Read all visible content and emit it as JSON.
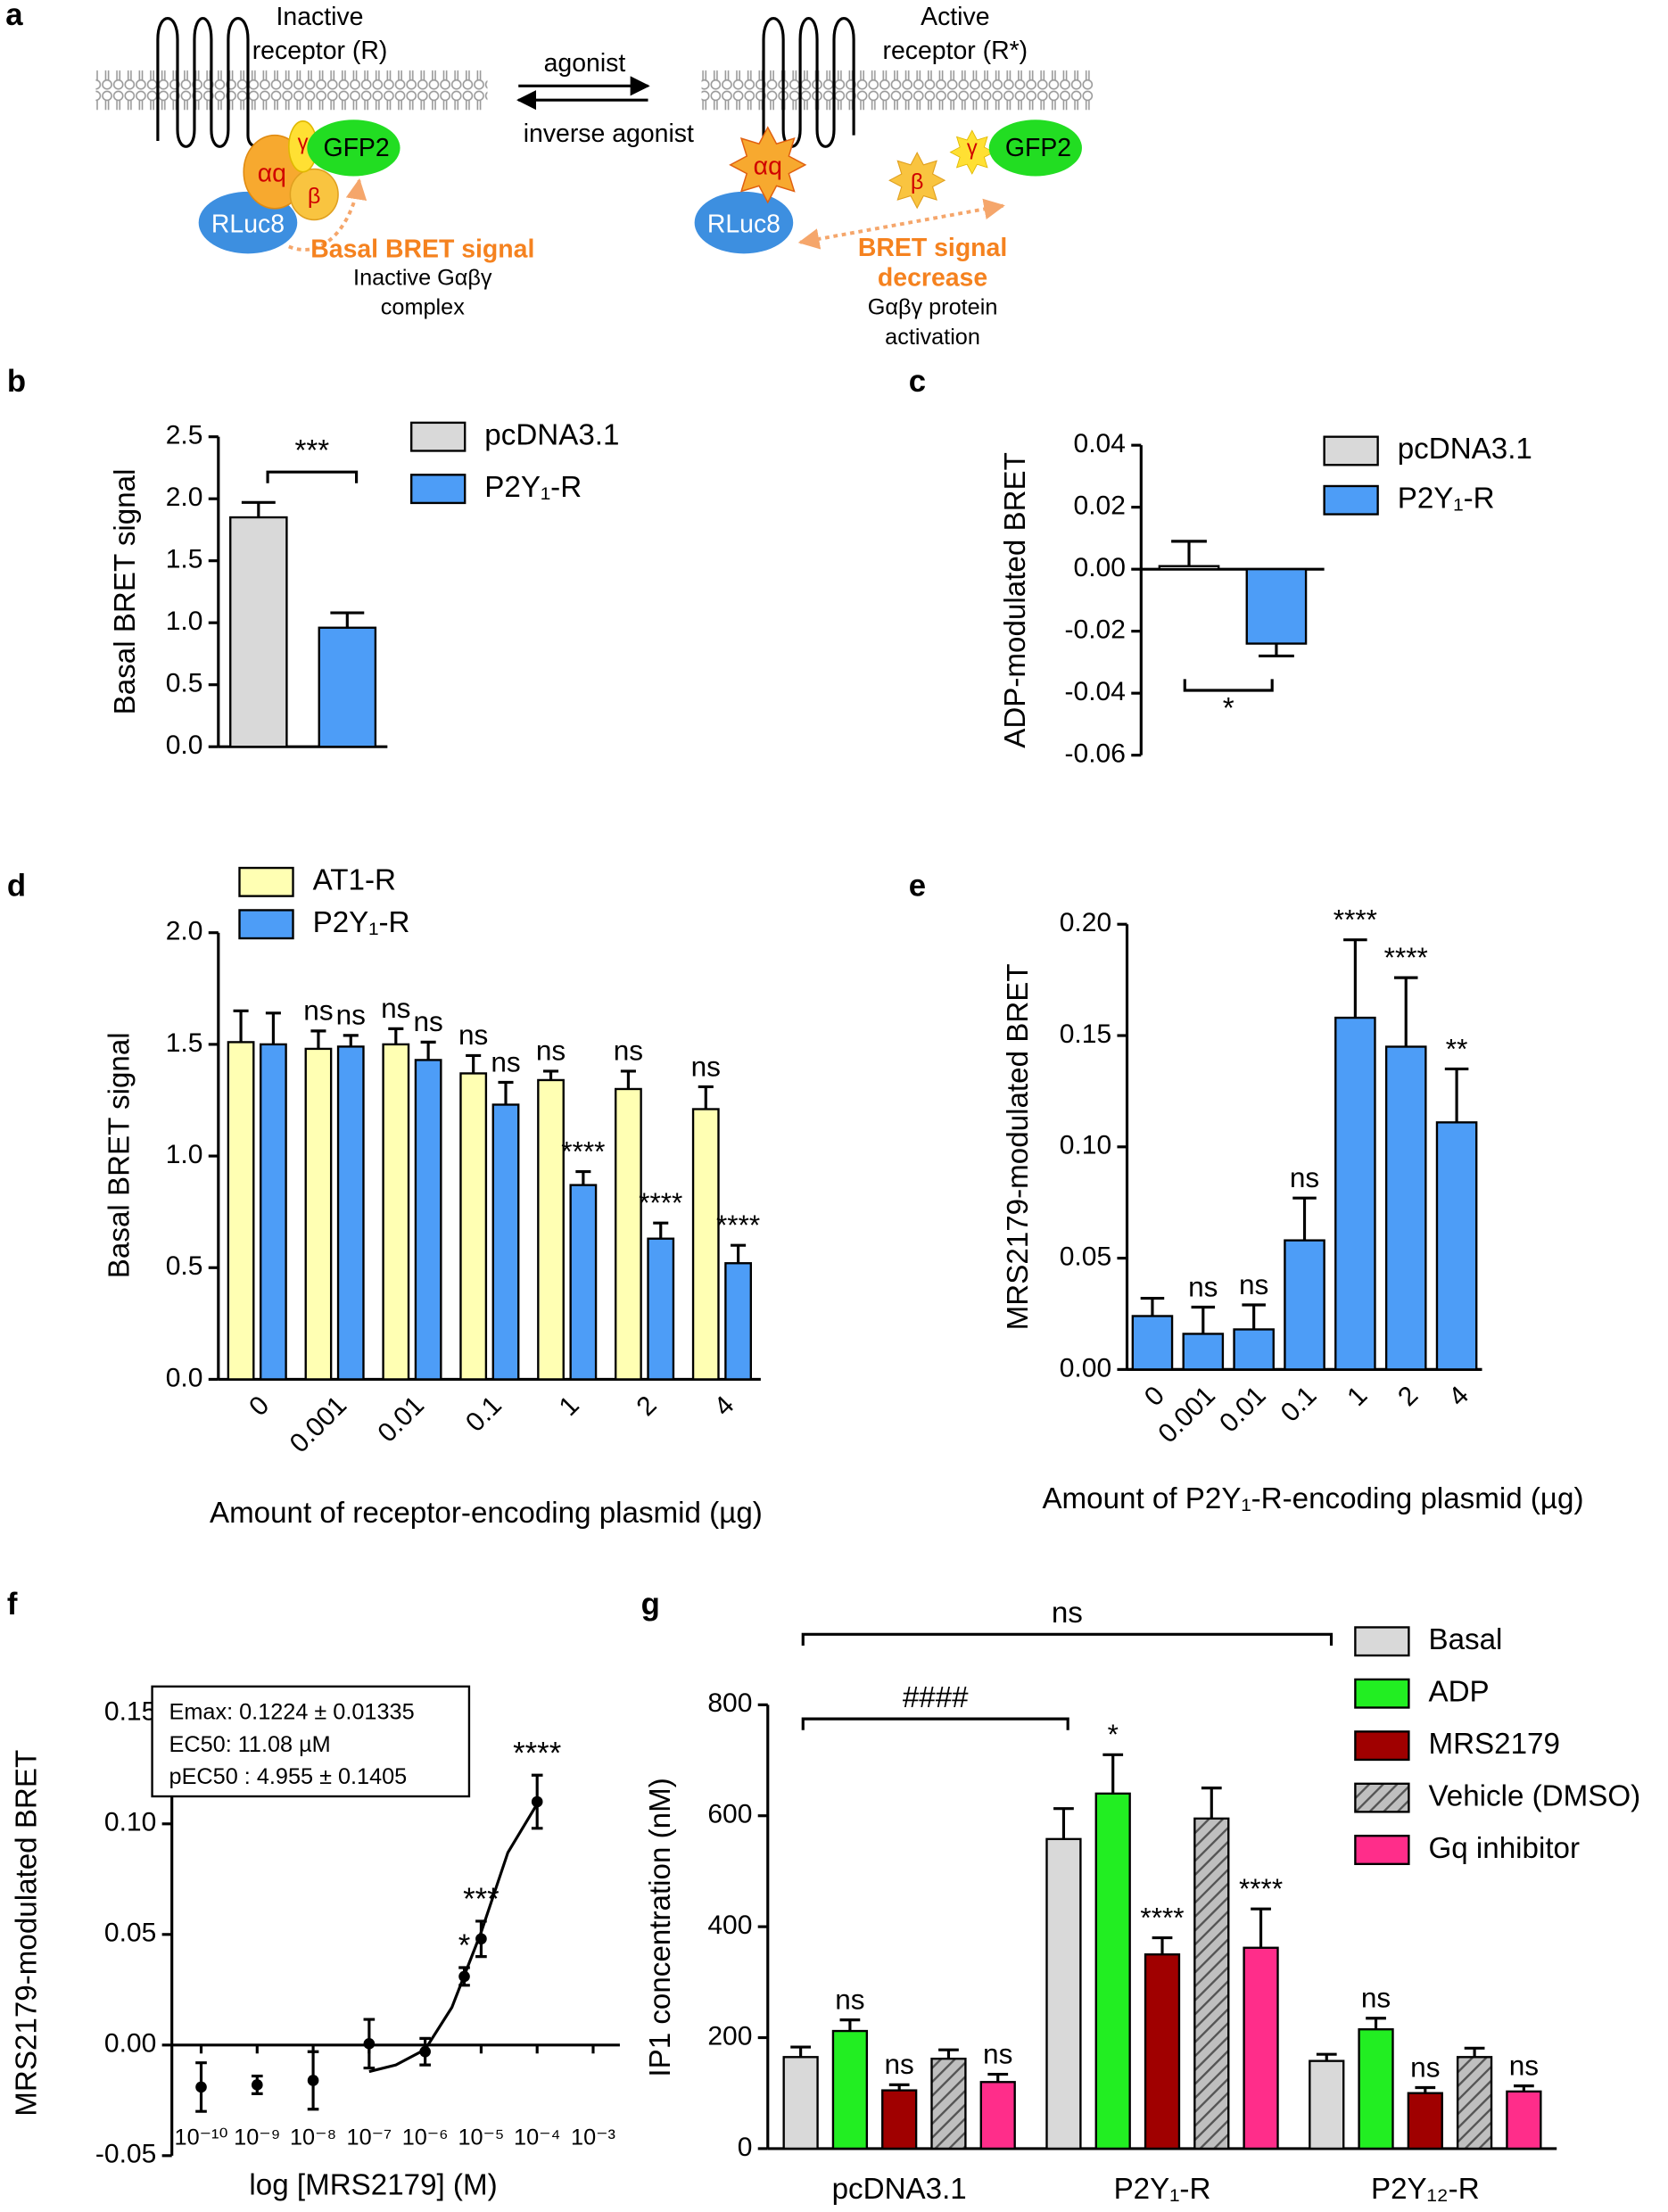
{
  "diagram": {
    "label": "a",
    "left": {
      "receptor": [
        "Inactive",
        "receptor (R)"
      ],
      "alpha": "αq",
      "gamma": "γ",
      "beta": "β",
      "gfp": "GFP2",
      "rluc": "RLuc8",
      "signal": [
        "Basal BRET signal"
      ],
      "state": [
        "Inactive Gαβγ",
        "complex"
      ]
    },
    "right": {
      "receptor": [
        "Active",
        "receptor (R*)"
      ],
      "alpha": "αq",
      "gamma": "γ",
      "beta": "β",
      "gfp": "GFP2",
      "rluc": "RLuc8",
      "signal": [
        "BRET signal",
        "decrease"
      ],
      "state": [
        "Gαβγ protein",
        "activation"
      ]
    },
    "arrows": {
      "forward": "agonist",
      "backward": "inverse agonist"
    }
  },
  "chart_data": [
    {
      "type": "bar",
      "label": "b",
      "y_label": "Basal BRET signal",
      "categories": [
        null
      ],
      "series": [
        {
          "name": "pcDNA3.1",
          "color": "#d9d9d9",
          "values": [
            1.85
          ],
          "errors": [
            0.12
          ]
        },
        {
          "name": "P2Y₁-R",
          "color": "#4d9df7",
          "values": [
            0.96
          ],
          "errors": [
            0.12
          ]
        }
      ],
      "brackets": [
        "***"
      ],
      "ylim": [
        0,
        2.5
      ],
      "yticks": [
        {
          "value": 0,
          "label": "0.0"
        },
        0.5,
        {
          "value": 1,
          "label": "1.0"
        },
        1.5,
        {
          "value": 2,
          "label": "2.0"
        },
        2.5
      ]
    },
    {
      "type": "bar",
      "label": "c",
      "y_label": "ADP-modulated BRET",
      "categories": [
        null
      ],
      "series": [
        {
          "name": "pcDNA3.1",
          "color": "#d9d9d9",
          "values": [
            0.001
          ],
          "errors": [
            0.008
          ]
        },
        {
          "name": "P2Y₁-R",
          "color": "#4d9df7",
          "values": [
            -0.024
          ],
          "errors": [
            0.004
          ]
        }
      ],
      "brackets": [
        "*"
      ],
      "ylim": [
        -0.06,
        0.04
      ],
      "yticks": [
        0.04,
        0.02,
        {
          "value": 0,
          "label": "0.00"
        },
        -0.02,
        -0.04,
        -0.06
      ]
    },
    {
      "type": "bar",
      "label": "d",
      "y_label": "Basal BRET signal",
      "x_label": "Amount of receptor-encoding plasmid (µg)",
      "categories": [
        "0",
        "0.001",
        "0.01",
        "0.1",
        "1",
        "2",
        "4"
      ],
      "series": [
        {
          "name": "AT1-R",
          "color": "#ffffb3",
          "values": [
            1.51,
            1.48,
            1.5,
            1.37,
            1.34,
            1.3,
            1.21
          ],
          "errors": [
            0.14,
            0.08,
            0.07,
            0.08,
            0.04,
            0.08,
            0.1
          ],
          "annotations": [
            null,
            "ns",
            "ns",
            "ns",
            "ns",
            "ns",
            "ns"
          ]
        },
        {
          "name": "P2Y₁-R",
          "color": "#4d9df7",
          "values": [
            1.5,
            1.49,
            1.43,
            1.23,
            0.87,
            0.63,
            0.52
          ],
          "errors": [
            0.14,
            0.05,
            0.08,
            0.1,
            0.06,
            0.07,
            0.08
          ],
          "annotations": [
            null,
            "ns",
            "ns",
            "ns",
            "****",
            "****",
            "****"
          ]
        }
      ],
      "ylim": [
        0,
        2
      ],
      "yticks": [
        {
          "value": 0,
          "label": "0.0"
        },
        0.5,
        {
          "value": 1,
          "label": "1.0"
        },
        1.5,
        {
          "value": 2,
          "label": "2.0"
        }
      ]
    },
    {
      "type": "bar",
      "label": "e",
      "y_label": "MRS2179-modulated BRET",
      "x_label": "Amount of P2Y₁-R-encoding plasmid (µg)",
      "categories": [
        "0",
        "0.001",
        "0.01",
        "0.1",
        "1",
        "2",
        "4"
      ],
      "series": [
        {
          "color": "#4d9df7",
          "values": [
            0.024,
            0.016,
            0.018,
            0.058,
            0.158,
            0.145,
            0.111
          ],
          "errors": [
            0.008,
            0.012,
            0.011,
            0.019,
            0.035,
            0.031,
            0.024
          ],
          "annotations": [
            null,
            "ns",
            "ns",
            "ns",
            "****",
            "****",
            "**"
          ]
        }
      ],
      "ylim": [
        0,
        0.2
      ],
      "yticks": [
        {
          "value": 0,
          "label": "0.00"
        },
        0.05,
        {
          "value": 0.1,
          "label": "0.10"
        },
        0.15,
        {
          "value": 0.2,
          "label": "0.20"
        }
      ]
    },
    {
      "type": "scatter",
      "label": "f",
      "y_label": "MRS2179-modulated BRET",
      "x_label": "log [MRS2179] (M)",
      "log_x": true,
      "color": "#000000",
      "x": [
        1e-10,
        1e-09,
        1e-08,
        1e-07,
        1e-06,
        5e-06,
        1e-05,
        0.0001
      ],
      "values": [
        -0.019,
        -0.018,
        -0.016,
        0.0006,
        -0.003,
        0.031,
        0.048,
        0.11
      ],
      "errors": [
        0.011,
        0.004,
        0.013,
        0.011,
        0.006,
        0.004,
        0.008,
        0.012
      ],
      "annotations": [
        null,
        null,
        null,
        null,
        null,
        "*",
        "***",
        "****"
      ],
      "fit": {
        "x": [
          1e-07,
          3e-07,
          1e-06,
          3e-06,
          1e-05,
          3e-05,
          0.0001
        ],
        "values": [
          -0.012,
          -0.009,
          -0.002,
          0.017,
          0.051,
          0.087,
          0.109
        ]
      },
      "box": [
        "Emax: 0.1224 ± 0.01335",
        "EC50: 11.08 µM",
        "pEC50 : 4.955 ± 0.1405"
      ],
      "xlim": [
        3e-11,
        0.003
      ],
      "xticks": [
        {
          "value": 1e-10,
          "label": "10⁻¹⁰"
        },
        {
          "value": 1e-09,
          "label": "10⁻⁹"
        },
        {
          "value": 1e-08,
          "label": "10⁻⁸"
        },
        {
          "value": 1e-07,
          "label": "10⁻⁷"
        },
        {
          "value": 1e-06,
          "label": "10⁻⁶"
        },
        {
          "value": 1e-05,
          "label": "10⁻⁵"
        },
        {
          "value": 0.0001,
          "label": "10⁻⁴"
        },
        {
          "value": 0.001,
          "label": "10⁻³"
        }
      ],
      "ylim": [
        -0.05,
        0.15
      ],
      "yticks": [
        -0.05,
        {
          "value": 0,
          "label": "0.00"
        },
        0.05,
        {
          "value": 0.1,
          "label": "0.10"
        },
        0.15
      ]
    },
    {
      "type": "bar",
      "label": "g",
      "y_label": "IP1 concentration (nM)",
      "categories": [
        "pcDNA3.1",
        "P2Y₁-R",
        "P2Y₁₂-R"
      ],
      "series": [
        {
          "name": "Basal",
          "color": "#d9d9d9",
          "values": [
            165,
            558,
            158
          ],
          "errors": [
            18,
            55,
            12
          ],
          "annotations": [
            null,
            null,
            null
          ]
        },
        {
          "name": "ADP",
          "color": "#22ee22",
          "values": [
            212,
            640,
            215
          ],
          "errors": [
            20,
            70,
            20
          ],
          "annotations": [
            "ns",
            "*",
            "ns"
          ]
        },
        {
          "name": "MRS2179",
          "color": "#a00000",
          "values": [
            105,
            350,
            100
          ],
          "errors": [
            10,
            30,
            10
          ],
          "annotations": [
            "ns",
            "****",
            "ns"
          ]
        },
        {
          "name": "Vehicle (DMSO)",
          "color": "#a6a6a6",
          "pattern": "hatch",
          "values": [
            162,
            595,
            165
          ],
          "errors": [
            16,
            55,
            16
          ],
          "annotations": [
            null,
            null,
            null
          ]
        },
        {
          "name": "Gq inhibitor",
          "color": "#ff2d8a",
          "values": [
            120,
            362,
            103
          ],
          "errors": [
            14,
            70,
            10
          ],
          "annotations": [
            "ns",
            "****",
            "ns"
          ]
        }
      ],
      "brackets": [
        "ns",
        "####"
      ],
      "ylim": [
        0,
        800
      ],
      "yticks": [
        0,
        200,
        400,
        600,
        800
      ]
    }
  ]
}
